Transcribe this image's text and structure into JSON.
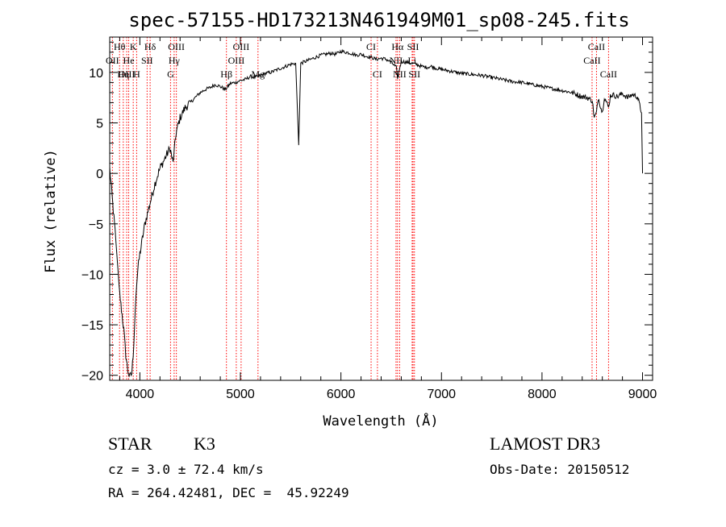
{
  "chart_data": {
    "type": "line",
    "title": "spec-57155-HD173213N461949M01_sp08-245.fits",
    "xlabel": "Wavelength (Å)",
    "ylabel": "Flux (relative)",
    "xlim": [
      3700,
      9100
    ],
    "ylim": [
      -20.5,
      13.5
    ],
    "x_ticks": [
      4000,
      5000,
      6000,
      7000,
      8000,
      9000
    ],
    "y_ticks": [
      -20,
      -15,
      -10,
      -5,
      0,
      5,
      10
    ],
    "grid": false,
    "legend": "none",
    "series": [
      {
        "x": [
          3700,
          3760,
          3800,
          3840,
          3860,
          3880,
          3900,
          3920,
          3940,
          3960,
          3980,
          4000,
          4050,
          4100,
          4150,
          4200,
          4250,
          4300,
          4330,
          4360,
          4400,
          4450,
          4500,
          4550,
          4600,
          4650,
          4700,
          4750,
          4800,
          4850,
          4900,
          4950,
          5000,
          5050,
          5100,
          5150,
          5200,
          5250,
          5300,
          5350,
          5400,
          5450,
          5500,
          5550,
          5580,
          5600,
          5650,
          5700,
          5750,
          5800,
          5850,
          5900,
          5950,
          6000,
          6050,
          6100,
          6150,
          6200,
          6250,
          6300,
          6350,
          6400,
          6450,
          6500,
          6550,
          6563,
          6600,
          6650,
          6700,
          6750,
          6800,
          6850,
          6900,
          6950,
          7000,
          7100,
          7200,
          7300,
          7400,
          7500,
          7600,
          7700,
          7800,
          7900,
          8000,
          8100,
          8200,
          8300,
          8400,
          8450,
          8500,
          8520,
          8542,
          8560,
          8600,
          8620,
          8662,
          8680,
          8700,
          8750,
          8800,
          8850,
          8900,
          8950,
          8990,
          9000
        ],
        "y": [
          0.5,
          -6.5,
          -12.0,
          -15.5,
          -18.0,
          -19.5,
          -20.2,
          -19.8,
          -17.0,
          -12.0,
          -9.5,
          -8.0,
          -5.0,
          -3.0,
          -1.0,
          0.5,
          1.5,
          2.5,
          1.0,
          4.0,
          5.5,
          6.5,
          7.0,
          7.5,
          8.0,
          8.3,
          8.5,
          8.8,
          8.6,
          8.3,
          8.9,
          9.0,
          9.2,
          9.3,
          9.6,
          9.5,
          9.7,
          9.9,
          10.0,
          10.2,
          10.4,
          10.6,
          10.8,
          10.9,
          2.8,
          10.9,
          11.1,
          11.3,
          11.5,
          11.7,
          11.8,
          11.9,
          11.8,
          12.1,
          12.0,
          11.9,
          11.7,
          11.8,
          11.6,
          11.5,
          11.3,
          11.4,
          11.3,
          11.0,
          10.5,
          9.5,
          11.1,
          11.0,
          10.9,
          10.8,
          10.6,
          10.5,
          10.6,
          10.4,
          10.3,
          10.1,
          9.9,
          9.8,
          9.7,
          9.5,
          9.3,
          9.1,
          9.0,
          8.8,
          8.6,
          8.4,
          8.2,
          8.0,
          7.6,
          7.5,
          7.2,
          5.5,
          6.0,
          7.5,
          6.0,
          7.6,
          6.5,
          7.7,
          7.8,
          7.6,
          7.9,
          7.5,
          7.8,
          7.6,
          6.0,
          0.0
        ]
      }
    ],
    "annotations": [
      {
        "label": "Hθ",
        "x": 3798,
        "row": 0
      },
      {
        "label": "K",
        "x": 3934,
        "row": 0
      },
      {
        "label": "Hδ",
        "x": 4102,
        "row": 0
      },
      {
        "label": "OIII",
        "x": 4363,
        "row": 0
      },
      {
        "label": "OIII",
        "x": 5007,
        "row": 0
      },
      {
        "label": "CI",
        "x": 6300,
        "row": 0
      },
      {
        "label": "Hα",
        "x": 6563,
        "row": 0
      },
      {
        "label": "SII",
        "x": 6717,
        "row": 0
      },
      {
        "label": "CaII",
        "x": 8542,
        "row": 0
      },
      {
        "label": "OII",
        "x": 3727,
        "row": 1
      },
      {
        "label": "He",
        "x": 3889,
        "row": 1
      },
      {
        "label": "SII",
        "x": 4072,
        "row": 1
      },
      {
        "label": "Hγ",
        "x": 4341,
        "row": 1
      },
      {
        "label": "OIII",
        "x": 4959,
        "row": 1
      },
      {
        "label": "NII",
        "x": 6548,
        "row": 1
      },
      {
        "label": "Li",
        "x": 6708,
        "row": 1
      },
      {
        "label": "CaII",
        "x": 8498,
        "row": 1
      },
      {
        "label": "OIII",
        "x": 3869,
        "row": 2
      },
      {
        "label": "Hη",
        "x": 3835,
        "row": 2
      },
      {
        "label": "H",
        "x": 3968,
        "row": 2
      },
      {
        "label": "G",
        "x": 4305,
        "row": 2
      },
      {
        "label": "Hβ",
        "x": 4861,
        "row": 2
      },
      {
        "label": "Mg",
        "x": 5175,
        "row": 2
      },
      {
        "label": "CI",
        "x": 6363,
        "row": 2
      },
      {
        "label": "NII",
        "x": 6584,
        "row": 2
      },
      {
        "label": "SII",
        "x": 6731,
        "row": 2
      },
      {
        "label": "CaII",
        "x": 8662,
        "row": 2
      }
    ]
  },
  "info": {
    "class_label": "STAR",
    "subclass": "K3",
    "survey": "LAMOST DR3",
    "cz_line": "cz = 3.0 ± 72.4 km/s",
    "obs_date": "Obs-Date: 20150512",
    "coords": "RA = 264.42481, DEC =  45.92249"
  },
  "colors": {
    "line": "#000000",
    "marker": "#ff0000"
  }
}
